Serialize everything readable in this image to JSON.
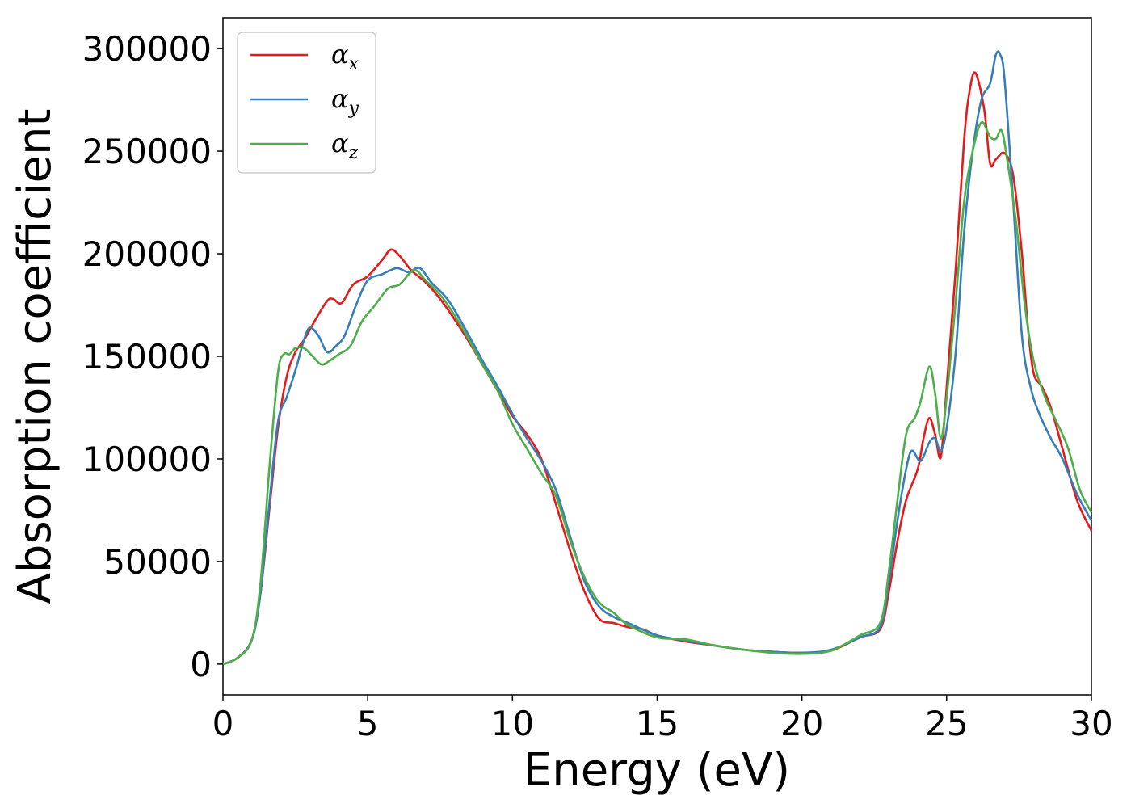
{
  "chart_data": {
    "type": "line",
    "title": "",
    "xlabel": "Energy (eV)",
    "ylabel": "Absorption coefficient",
    "xlim": [
      0,
      30
    ],
    "ylim": [
      -15000,
      315000
    ],
    "xticks": [
      0,
      5,
      10,
      15,
      20,
      25,
      30
    ],
    "xtick_labels": [
      "0",
      "5",
      "10",
      "15",
      "20",
      "25",
      "30"
    ],
    "yticks": [
      0,
      50000,
      100000,
      150000,
      200000,
      250000,
      300000
    ],
    "ytick_labels": [
      "0",
      "50000",
      "100000",
      "150000",
      "200000",
      "250000",
      "300000"
    ],
    "grid": false,
    "legend_position": "top-left",
    "series": [
      {
        "name": "α_x",
        "name_base": "α",
        "name_sub": "x",
        "color": "#e41a1c",
        "x": [
          0,
          0.5,
          1.0,
          1.3,
          1.6,
          1.9,
          2.2,
          2.5,
          2.8,
          3.2,
          3.6,
          3.8,
          4.1,
          4.5,
          5.0,
          5.5,
          5.8,
          6.1,
          6.5,
          7.0,
          7.5,
          8.0,
          8.5,
          9.0,
          9.5,
          10.0,
          10.5,
          11.0,
          11.5,
          12.0,
          12.5,
          13.0,
          13.5,
          14.0,
          14.5,
          15.0,
          16.0,
          17.0,
          18.0,
          19.0,
          20.0,
          21.0,
          22.0,
          22.7,
          23.0,
          23.3,
          23.6,
          24.0,
          24.2,
          24.4,
          24.6,
          24.8,
          25.0,
          25.3,
          25.6,
          25.8,
          26.0,
          26.3,
          26.5,
          26.7,
          27.0,
          27.3,
          27.6,
          27.8,
          28.0,
          28.3,
          28.6,
          29.0,
          29.5,
          30.0
        ],
        "y": [
          0,
          3000,
          12000,
          35000,
          75000,
          115000,
          140000,
          152000,
          158000,
          168000,
          177000,
          178000,
          176000,
          185000,
          189000,
          197000,
          202000,
          199000,
          192000,
          186000,
          178000,
          168000,
          157000,
          145000,
          133000,
          121000,
          112000,
          100000,
          78000,
          55000,
          35000,
          22000,
          20000,
          18000,
          17000,
          14000,
          11000,
          9000,
          7000,
          6000,
          5500,
          6500,
          13000,
          17000,
          35000,
          60000,
          80000,
          95000,
          110000,
          120000,
          112000,
          101000,
          135000,
          190000,
          255000,
          280000,
          288000,
          270000,
          244000,
          246000,
          249000,
          238000,
          200000,
          165000,
          142000,
          135000,
          125000,
          105000,
          80000,
          65000
        ]
      },
      {
        "name": "α_y",
        "name_base": "α",
        "name_sub": "y",
        "color": "#377eb8",
        "x": [
          0,
          0.5,
          1.0,
          1.3,
          1.6,
          1.9,
          2.2,
          2.5,
          2.8,
          3.0,
          3.3,
          3.6,
          3.9,
          4.2,
          4.6,
          5.0,
          5.5,
          6.0,
          6.4,
          6.8,
          7.2,
          7.8,
          8.5,
          9.0,
          9.5,
          10.0,
          10.5,
          11.0,
          11.5,
          12.0,
          12.5,
          13.0,
          13.5,
          14.0,
          15.0,
          16.0,
          17.0,
          18.0,
          19.0,
          20.0,
          21.0,
          22.0,
          22.7,
          23.0,
          23.3,
          23.6,
          23.8,
          24.1,
          24.4,
          24.6,
          24.8,
          25.0,
          25.3,
          25.6,
          25.9,
          26.2,
          26.5,
          26.7,
          26.85,
          27.0,
          27.3,
          27.6,
          27.9,
          28.2,
          28.6,
          29.0,
          29.5,
          30.0
        ],
        "y": [
          0,
          3000,
          12000,
          35000,
          78000,
          118000,
          130000,
          143000,
          158000,
          164000,
          160000,
          152000,
          155000,
          160000,
          175000,
          187000,
          190000,
          193000,
          191000,
          193000,
          186000,
          177000,
          160000,
          147000,
          135000,
          122000,
          110000,
          99000,
          85000,
          62000,
          40000,
          28000,
          23000,
          20000,
          14000,
          11500,
          9000,
          7000,
          6000,
          5500,
          7000,
          13000,
          18000,
          40000,
          70000,
          95000,
          104000,
          99000,
          108000,
          110000,
          104000,
          115000,
          150000,
          210000,
          250000,
          275000,
          283000,
          297000,
          297000,
          285000,
          225000,
          160000,
          135000,
          122000,
          110000,
          100000,
          83000,
          70000
        ]
      },
      {
        "name": "α_z",
        "name_base": "α",
        "name_sub": "z",
        "color": "#4daf4a",
        "x": [
          0,
          0.5,
          1.0,
          1.3,
          1.6,
          1.9,
          2.1,
          2.3,
          2.5,
          2.8,
          3.1,
          3.4,
          3.7,
          4.0,
          4.4,
          4.8,
          5.2,
          5.7,
          6.1,
          6.6,
          7.0,
          7.5,
          8.0,
          8.5,
          9.0,
          9.5,
          10.0,
          10.5,
          11.0,
          11.5,
          12.0,
          12.5,
          13.0,
          13.5,
          14.0,
          15.0,
          16.0,
          17.0,
          18.0,
          19.0,
          20.0,
          21.0,
          22.0,
          22.7,
          23.0,
          23.3,
          23.6,
          23.9,
          24.1,
          24.4,
          24.6,
          24.8,
          25.0,
          25.3,
          25.6,
          25.9,
          26.2,
          26.5,
          26.7,
          26.9,
          27.1,
          27.4,
          27.7,
          28.0,
          28.4,
          28.8,
          29.2,
          29.6,
          30.0
        ],
        "y": [
          0,
          3000,
          12000,
          40000,
          95000,
          142000,
          151000,
          151000,
          154000,
          154000,
          150000,
          146000,
          148000,
          151000,
          155000,
          167000,
          174000,
          183000,
          185000,
          192000,
          187000,
          180000,
          170000,
          158000,
          145000,
          133000,
          117000,
          105000,
          93000,
          82000,
          60000,
          42000,
          30000,
          25000,
          19000,
          13000,
          12000,
          9000,
          7000,
          5500,
          5000,
          6500,
          14000,
          20000,
          45000,
          80000,
          112000,
          120000,
          128000,
          145000,
          132000,
          110000,
          130000,
          175000,
          225000,
          250000,
          264000,
          257000,
          256000,
          260000,
          245000,
          215000,
          175000,
          148000,
          130000,
          118000,
          105000,
          85000,
          74000
        ]
      }
    ]
  }
}
